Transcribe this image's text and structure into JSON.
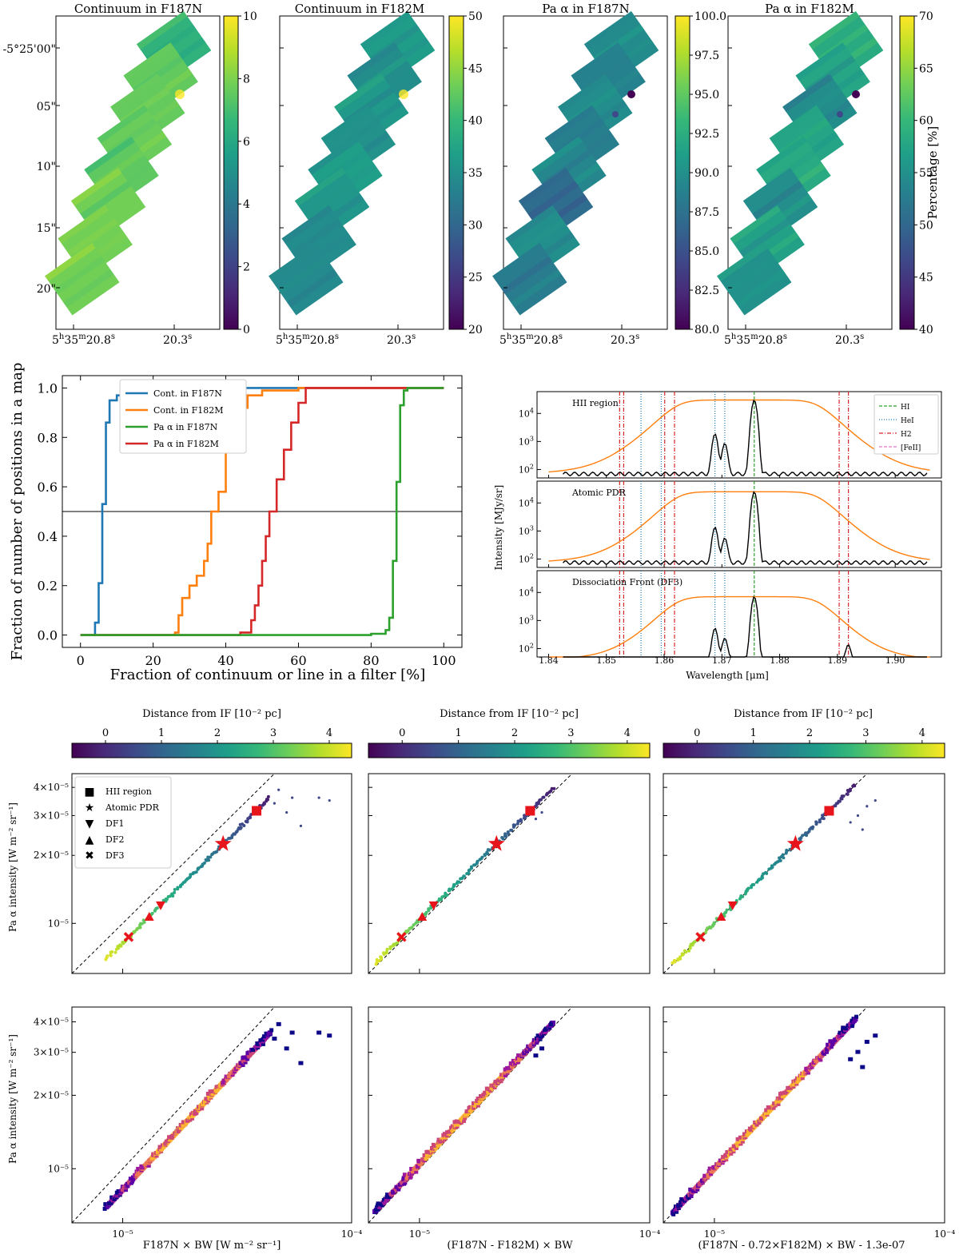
{
  "colors": {
    "blue": "#1f77b4",
    "orange": "#ff7f0e",
    "green": "#2ca02c",
    "red": "#d62728",
    "viridis": [
      "#440154",
      "#482878",
      "#3e4989",
      "#31688e",
      "#26828e",
      "#1f9e89",
      "#35b779",
      "#6ece58",
      "#b5de2b",
      "#fde725"
    ]
  },
  "maps": {
    "ra_ticks": [
      "5h35m20.8s",
      "20.3s"
    ],
    "ra_tick_parts": [
      {
        "a": "5",
        "h": "h",
        "b": "35",
        "m": "m",
        "c": "20.8",
        "s": "s"
      },
      {
        "c": "20.3",
        "s": "s"
      }
    ],
    "dec_ticks": [
      "-5°25'00\"",
      "05\"",
      "10\"",
      "15\"",
      "20\""
    ],
    "colorbar_label": "Percentage [%]",
    "panels": [
      {
        "title": "Continuum in F187N",
        "vmin": 0,
        "vmax": 10,
        "ticks": [
          "0",
          "2",
          "4",
          "6",
          "8",
          "10"
        ]
      },
      {
        "title": "Continuum in F182M",
        "vmin": 20,
        "vmax": 50,
        "ticks": [
          "20",
          "25",
          "30",
          "35",
          "40",
          "45",
          "50"
        ]
      },
      {
        "title": "Pa α in F187N",
        "vmin": 80,
        "vmax": 100,
        "ticks": [
          "80.0",
          "82.5",
          "85.0",
          "87.5",
          "90.0",
          "92.5",
          "95.0",
          "97.5",
          "100.0"
        ]
      },
      {
        "title": "Pa α in F182M",
        "vmin": 40,
        "vmax": 70,
        "ticks": [
          "40",
          "45",
          "50",
          "55",
          "60",
          "65",
          "70"
        ]
      }
    ]
  },
  "chart_data": [
    {
      "type": "line",
      "id": "cumulative",
      "xlabel": "Fraction of continuum or line in a filter [%]",
      "ylabel": "Fraction of number of positions in a map",
      "xlim": [
        -5,
        105
      ],
      "ylim": [
        -0.05,
        1.05
      ],
      "xticks": [
        0,
        20,
        40,
        60,
        80,
        100
      ],
      "yticks": [
        0.0,
        0.2,
        0.4,
        0.6,
        0.8,
        1.0
      ],
      "hline": 0.5,
      "legend": "top-left",
      "series": [
        {
          "name": "Cont. in F187N",
          "color": "#1f77b4",
          "x": [
            0,
            4,
            5,
            6,
            7,
            8,
            10,
            12,
            15,
            20,
            30,
            100
          ],
          "y": [
            0,
            0.05,
            0.21,
            0.53,
            0.86,
            0.95,
            0.97,
            0.98,
            0.99,
            0.995,
            1.0,
            1.0
          ]
        },
        {
          "name": "Cont. in F182M",
          "color": "#ff7f0e",
          "x": [
            0,
            26,
            27,
            28,
            30,
            32,
            34,
            35,
            36,
            38,
            40,
            42,
            44,
            46,
            50,
            60,
            100
          ],
          "y": [
            0,
            0.01,
            0.08,
            0.15,
            0.2,
            0.24,
            0.3,
            0.37,
            0.5,
            0.58,
            0.75,
            0.84,
            0.92,
            0.97,
            0.99,
            1.0,
            1.0
          ]
        },
        {
          "name": "Pa α in F182M",
          "color": "#d62728",
          "x": [
            0,
            44,
            47,
            48,
            49,
            50,
            51,
            52,
            54,
            56,
            58,
            60,
            62,
            100
          ],
          "y": [
            0,
            0.01,
            0.06,
            0.12,
            0.2,
            0.3,
            0.4,
            0.5,
            0.63,
            0.75,
            0.86,
            0.94,
            1.0,
            1.0
          ]
        },
        {
          "name": "Pa α in F187N",
          "color": "#2ca02c",
          "x": [
            0,
            80,
            84,
            85,
            86,
            87,
            88,
            89,
            90,
            100
          ],
          "y": [
            0,
            0.005,
            0.02,
            0.07,
            0.3,
            0.62,
            0.93,
            0.99,
            1.0,
            1.0
          ]
        }
      ]
    },
    {
      "type": "line",
      "id": "spectra",
      "xlabel": "Wavelength [μm]",
      "ylabel": "Intensity [MJy/sr]",
      "xlim": [
        1.838,
        1.908
      ],
      "xticks": [
        1.84,
        1.85,
        1.86,
        1.87,
        1.88,
        1.89,
        1.9
      ],
      "ylog": [
        50,
        60000
      ],
      "yticks_exp": [
        2,
        3,
        4
      ],
      "legend": [
        {
          "label": "HI",
          "color": "#2ca02c",
          "dash": "4,2"
        },
        {
          "label": "HeI",
          "color": "#1f77b4",
          "dash": "1,2"
        },
        {
          "label": "H2",
          "color": "#d62728",
          "dash": "5,2,1,2"
        },
        {
          "label": "[FeII]",
          "color": "#e377c2",
          "dash": "4,2"
        }
      ],
      "lines": {
        "HI": [
          1.8756
        ],
        "HeI": [
          1.856,
          1.8595,
          1.8688,
          1.8705
        ],
        "H2": [
          1.8523,
          1.853,
          1.8601,
          1.8618,
          1.8903,
          1.8919
        ]
      },
      "panels": [
        {
          "label": "HII region",
          "peak": 30000,
          "filter_max": 30000,
          "base": 70,
          "bumps": [
            [
              1.8688,
              1800
            ],
            [
              1.8705,
              800
            ]
          ]
        },
        {
          "label": "Atomic PDR",
          "peak": 25000,
          "filter_max": 25000,
          "base": 75,
          "bumps": [
            [
              1.8688,
              1300
            ],
            [
              1.8705,
              500
            ]
          ]
        },
        {
          "label": "Dissociation Front (DF3)",
          "peak": 7000,
          "filter_max": 7000,
          "base": 40,
          "bumps": [
            [
              1.8688,
              500
            ],
            [
              1.8705,
              200
            ],
            [
              1.8919,
              95
            ]
          ]
        }
      ]
    },
    {
      "type": "scatter",
      "id": "calibration",
      "ylabel": "Pa α intensity [W m⁻² sr⁻¹]",
      "colorbar_label": "Distance from IF [10⁻² pc]",
      "colorbar_ticks": [
        0,
        1,
        2,
        3,
        4
      ],
      "colorbar_range": [
        -0.6,
        4.4
      ],
      "xlog": [
        6e-06,
        0.0001
      ],
      "ylog": [
        6e-06,
        4.6e-05
      ],
      "ytick_labels": [
        "10⁻⁵",
        "2×10⁻⁵",
        "3×10⁻⁵",
        "4×10⁻⁵"
      ],
      "yticks": [
        1e-05,
        2e-05,
        3e-05,
        4e-05
      ],
      "xtick_labels": [
        "10⁻⁵",
        "10⁻⁴"
      ],
      "xticks": [
        1e-05,
        0.0001
      ],
      "columns": [
        {
          "xlabel": "F187N × BW [W m⁻² sr⁻¹]",
          "ratio": 1.22,
          "xmin": 8.5e-06,
          "xmax": 4.4e-05,
          "outliers": [
            [
              4.6e-05,
              3.4e-05
            ],
            [
              5.2e-05,
              3.1e-05
            ],
            [
              6e-05,
              2.7e-05
            ],
            [
              7.2e-05,
              3.6e-05
            ],
            [
              8e-05,
              3.5e-05
            ],
            [
              4.8e-05,
              3.9e-05
            ],
            [
              5.5e-05,
              3.6e-05
            ]
          ]
        },
        {
          "xlabel": "(F187N - F182M) × BW",
          "ratio": 0.96,
          "xmin": 6.4e-06,
          "xmax": 3.8e-05,
          "outliers": [
            [
              3.2e-05,
              2.9e-05
            ],
            [
              3.4e-05,
              3.1e-05
            ]
          ]
        },
        {
          "xlabel": "(F187N - 0.72×F182M) × BW - 1.3e-07",
          "ratio": 1.0,
          "xmin": 6.6e-06,
          "xmax": 4.1e-05,
          "outliers": [
            [
              4.2e-05,
              3e-05
            ],
            [
              4.6e-05,
              3.3e-05
            ],
            [
              5e-05,
              3.5e-05
            ],
            [
              3.9e-05,
              2.8e-05
            ],
            [
              4.4e-05,
              2.6e-05
            ]
          ]
        }
      ],
      "markers": [
        {
          "name": "HII region",
          "symbol": "square",
          "y": 3.15e-05
        },
        {
          "name": "Atomic PDR",
          "symbol": "star",
          "y": 2.25e-05
        },
        {
          "name": "DF1",
          "symbol": "triangle-down",
          "y": 1.2e-05
        },
        {
          "name": "DF2",
          "symbol": "triangle-up",
          "y": 1.07e-05
        },
        {
          "name": "DF3",
          "symbol": "x",
          "y": 8.7e-06
        }
      ]
    }
  ]
}
